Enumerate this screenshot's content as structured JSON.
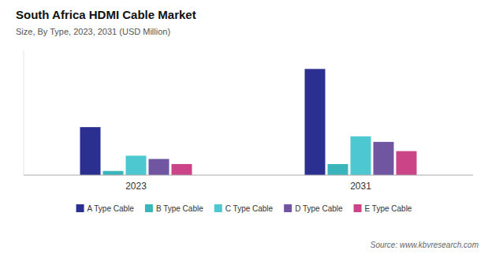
{
  "chart_data": {
    "type": "bar",
    "title": "South Africa HDMI  Cable Market",
    "subtitle": "Size, By Type, 2023, 2031 (USD Million)",
    "source": "Source: www.kbvresearch.com",
    "categories": [
      "2023",
      "2031"
    ],
    "series": [
      {
        "name": "A Type Cable",
        "color": "#2b2f8f",
        "values": [
          5.2,
          11.5
        ]
      },
      {
        "name": "B Type Cable",
        "color": "#3ab5bc",
        "values": [
          0.45,
          1.2
        ]
      },
      {
        "name": "C Type Cable",
        "color": "#4ec8d0",
        "values": [
          2.1,
          4.2
        ]
      },
      {
        "name": "D Type Cable",
        "color": "#7055a0",
        "values": [
          1.75,
          3.6
        ]
      },
      {
        "name": "E Type Cable",
        "color": "#cc4488",
        "values": [
          1.2,
          2.6
        ]
      }
    ],
    "ylim": [
      0,
      13.5
    ],
    "grid": false,
    "legend": "bottom",
    "tick_labels": "x"
  }
}
